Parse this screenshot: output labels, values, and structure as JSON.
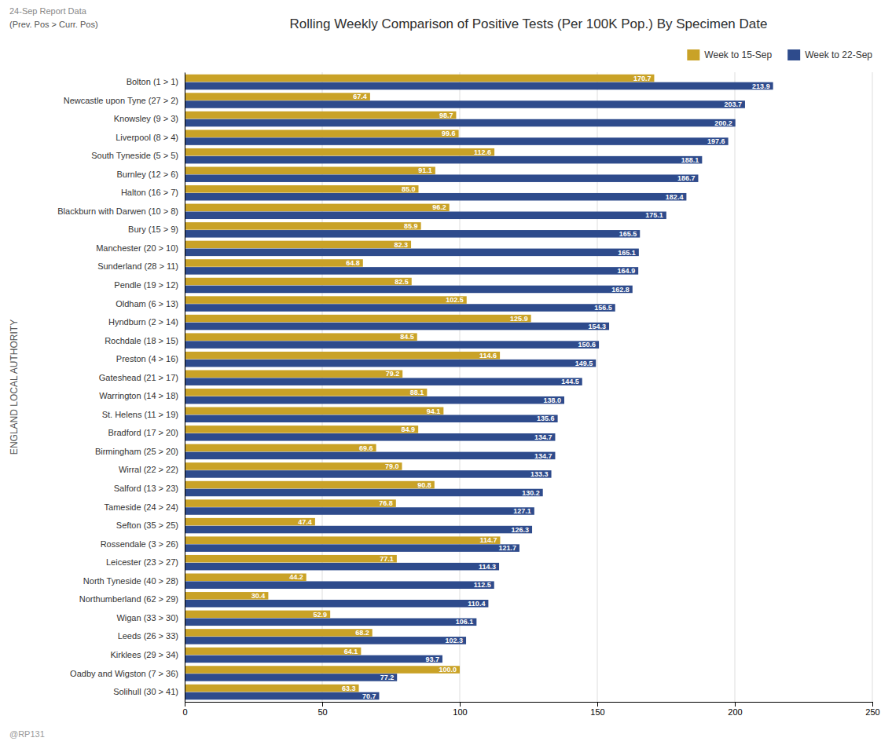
{
  "chart_data": {
    "type": "bar",
    "orientation": "horizontal",
    "title": "Rolling Weekly Comparison of Positive Tests (Per 100K Pop.) By Specimen Date",
    "subtitle": "24-Sep Report Data",
    "annotations": [
      "(Prev. Pos > Curr. Pos)",
      "@RP131"
    ],
    "ylabel": "ENGLAND LOCAL AUTHORITY",
    "categories": [
      "Bolton (1 > 1)",
      "Newcastle upon Tyne (27 > 2)",
      "Knowsley (9 > 3)",
      "Liverpool (8 > 4)",
      "South Tyneside (5 > 5)",
      "Burnley (12 > 6)",
      "Halton (16 > 7)",
      "Blackburn with Darwen (10 > 8)",
      "Bury (15 > 9)",
      "Manchester (20 > 10)",
      "Sunderland (28 > 11)",
      "Pendle (19 > 12)",
      "Oldham (6 > 13)",
      "Hyndburn (2 > 14)",
      "Rochdale (18 > 15)",
      "Preston (4 > 16)",
      "Gateshead (21 > 17)",
      "Warrington (14 > 18)",
      "St. Helens (11 > 19)",
      "Bradford (17 > 20)",
      "Birmingham (25 > 20)",
      "Wirral (22 > 22)",
      "Salford (13 > 23)",
      "Tameside (24 > 24)",
      "Sefton (35 > 25)",
      "Rossendale (3 > 26)",
      "Leicester (23 > 27)",
      "North Tyneside (40 > 28)",
      "Northumberland (62 > 29)",
      "Wigan (33 > 30)",
      "Leeds (26 > 33)",
      "Kirklees (29 > 34)",
      "Oadby and Wigston (7 > 36)",
      "Solihull (30 > 41)"
    ],
    "series": [
      {
        "name": "Week to 15-Sep",
        "color": "#C9A227",
        "values": [
          170.7,
          67.4,
          98.7,
          99.6,
          112.6,
          91.1,
          85.0,
          96.2,
          85.9,
          82.3,
          64.8,
          82.5,
          102.5,
          125.9,
          84.5,
          114.6,
          79.2,
          88.1,
          94.1,
          84.9,
          69.6,
          79.0,
          90.8,
          76.8,
          47.4,
          114.7,
          77.1,
          44.2,
          30.4,
          52.9,
          68.2,
          64.1,
          100.0,
          63.3
        ],
        "value_labels": [
          "170.7",
          "67.4",
          "98.7",
          "99.6",
          "112.6",
          "91.1",
          "85.0",
          "96.2",
          "85.9",
          "82.3",
          "64.8",
          "82.5",
          "102.5",
          "125.9",
          "84.5",
          "114.6",
          "79.2",
          "88.1",
          "94.1",
          "84.9",
          "69.6",
          "79.0",
          "90.8",
          "76.8",
          "47.4",
          "114.7",
          "77.1",
          "44.2",
          "30.4",
          "52.9",
          "68.2",
          "64.1",
          "100.0",
          "63.3"
        ]
      },
      {
        "name": "Week to 22-Sep",
        "color": "#2E4B8C",
        "values": [
          213.9,
          203.7,
          200.2,
          197.6,
          188.1,
          186.7,
          182.4,
          175.1,
          165.5,
          165.1,
          164.9,
          162.8,
          156.5,
          154.3,
          150.6,
          149.5,
          144.5,
          138.0,
          135.6,
          134.7,
          134.7,
          133.3,
          130.2,
          127.1,
          126.3,
          121.7,
          114.3,
          112.5,
          110.4,
          106.1,
          102.3,
          93.7,
          77.2,
          70.7
        ],
        "value_labels": [
          "213.9",
          "203.7",
          "200.2",
          "197.6",
          "188.1",
          "186.7",
          "182.4",
          "175.1",
          "165.5",
          "165.1",
          "164.9",
          "162.8",
          "156.5",
          "154.3",
          "150.6",
          "149.5",
          "144.5",
          "138.0",
          "135.6",
          "134.7",
          "134.7",
          "133.3",
          "130.2",
          "127.1",
          "126.3",
          "121.7",
          "114.3",
          "112.5",
          "110.4",
          "106.1",
          "102.3",
          "93.7",
          "77.2",
          "70.7"
        ]
      }
    ],
    "xlim": [
      0,
      250
    ],
    "xticks": [
      0,
      50,
      100,
      150,
      200,
      250
    ],
    "grid": true,
    "legend": "upper right",
    "data_labels": true
  }
}
